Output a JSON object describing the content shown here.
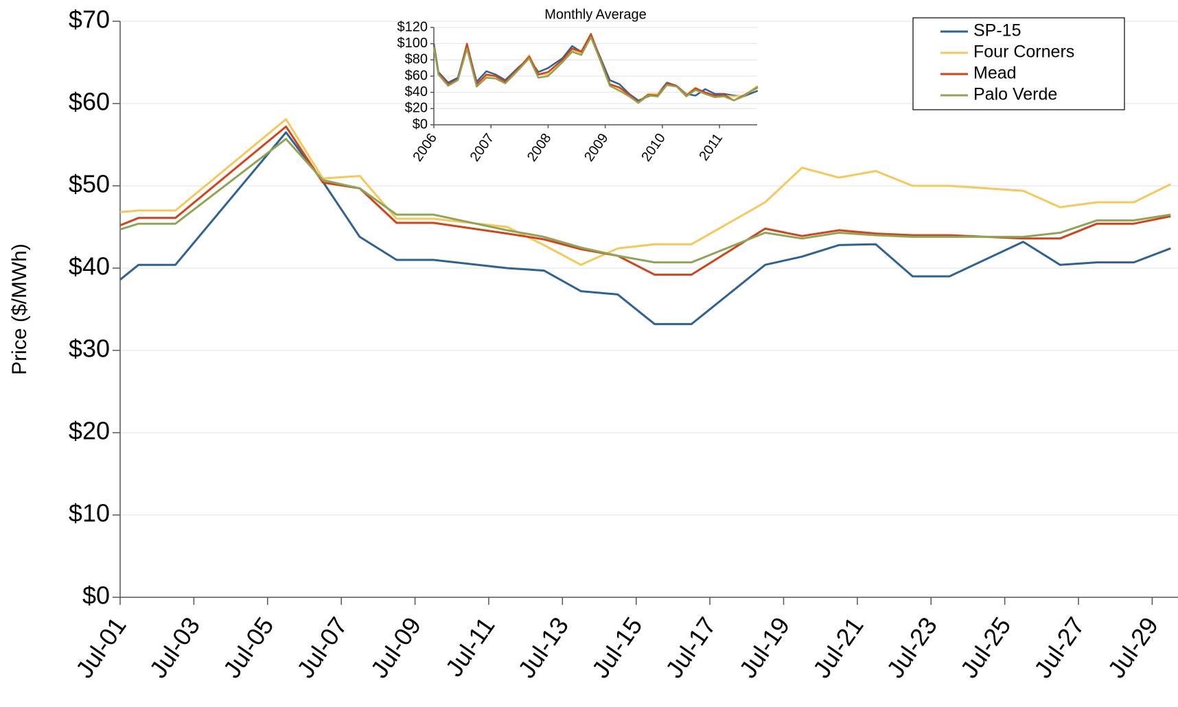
{
  "chart_data": [
    {
      "type": "line",
      "ylabel": "Price ($/MWh)",
      "x": [
        1,
        1.5,
        2.5,
        5.5,
        6.5,
        7.5,
        8.5,
        9.5,
        11.5,
        12.5,
        13.5,
        14.5,
        15.5,
        16.5,
        18.5,
        19.5,
        20.5,
        21.5,
        22.5,
        23.5,
        25.5,
        26.5,
        27.5,
        28.5,
        29.5
      ],
      "xlim": [
        1,
        29.7
      ],
      "xticks": [
        {
          "value": 1,
          "label": "Jul-01"
        },
        {
          "value": 3,
          "label": "Jul-03"
        },
        {
          "value": 5,
          "label": "Jul-05"
        },
        {
          "value": 7,
          "label": "Jul-07"
        },
        {
          "value": 9,
          "label": "Jul-09"
        },
        {
          "value": 11,
          "label": "Jul-11"
        },
        {
          "value": 13,
          "label": "Jul-13"
        },
        {
          "value": 15,
          "label": "Jul-15"
        },
        {
          "value": 17,
          "label": "Jul-17"
        },
        {
          "value": 19,
          "label": "Jul-19"
        },
        {
          "value": 21,
          "label": "Jul-21"
        },
        {
          "value": 23,
          "label": "Jul-23"
        },
        {
          "value": 25,
          "label": "Jul-25"
        },
        {
          "value": 27,
          "label": "Jul-27"
        },
        {
          "value": 29,
          "label": "Jul-29"
        }
      ],
      "ylim": [
        0,
        70
      ],
      "yticks": [
        {
          "value": 0,
          "label": "$0"
        },
        {
          "value": 10,
          "label": "$10"
        },
        {
          "value": 20,
          "label": "$20"
        },
        {
          "value": 30,
          "label": "$30"
        },
        {
          "value": 40,
          "label": "$40"
        },
        {
          "value": 50,
          "label": "$50"
        },
        {
          "value": 60,
          "label": "$60"
        },
        {
          "value": 70,
          "label": "$70"
        }
      ],
      "grid": true,
      "legend": "top-right",
      "series": [
        {
          "name": "SP-15",
          "color": "#2e6294",
          "values": [
            38.6,
            40.4,
            40.4,
            56.5,
            50.5,
            43.8,
            41.0,
            41.0,
            40.0,
            39.7,
            37.2,
            36.8,
            33.2,
            33.2,
            40.4,
            41.4,
            42.8,
            42.9,
            39.0,
            39.0,
            43.2,
            40.4,
            40.7,
            40.7,
            42.4
          ]
        },
        {
          "name": "Four Corners",
          "color": "#f6c85a",
          "values": [
            46.8,
            47.0,
            47.0,
            58.1,
            50.9,
            51.2,
            46.0,
            46.0,
            45.0,
            42.8,
            40.4,
            42.4,
            42.9,
            42.9,
            48.0,
            52.2,
            51.0,
            51.8,
            50.0,
            50.0,
            49.4,
            47.4,
            48.0,
            48.0,
            50.2
          ]
        },
        {
          "name": "Mead",
          "color": "#d2421b",
          "values": [
            45.2,
            46.1,
            46.1,
            57.2,
            50.4,
            49.7,
            45.5,
            45.5,
            44.2,
            43.5,
            42.3,
            41.5,
            39.2,
            39.2,
            44.8,
            43.9,
            44.6,
            44.2,
            44.0,
            44.0,
            43.6,
            43.6,
            45.4,
            45.4,
            46.3
          ]
        },
        {
          "name": "Palo Verde",
          "color": "#8ea555",
          "values": [
            44.7,
            45.4,
            45.4,
            55.7,
            50.7,
            49.7,
            46.5,
            46.5,
            44.6,
            43.8,
            42.5,
            41.5,
            40.7,
            40.7,
            44.3,
            43.6,
            44.3,
            44.0,
            43.8,
            43.8,
            43.8,
            44.3,
            45.8,
            45.8,
            46.5
          ]
        }
      ]
    },
    {
      "type": "line",
      "title": "Monthly Average",
      "x": [
        2006,
        2006.08,
        2006.25,
        2006.42,
        2006.58,
        2006.75,
        2006.92,
        2007.08,
        2007.25,
        2007.5,
        2007.67,
        2007.83,
        2008,
        2008.25,
        2008.42,
        2008.58,
        2008.75,
        2008.92,
        2009.08,
        2009.25,
        2009.42,
        2009.58,
        2009.75,
        2009.92,
        2010.08,
        2010.25,
        2010.42,
        2010.58,
        2010.75,
        2010.92,
        2011.08,
        2011.25,
        2011.42,
        2011.67
      ],
      "xlim": [
        2006,
        2011.66
      ],
      "xticks": [
        2006,
        2007,
        2008,
        2009,
        2010,
        2011
      ],
      "ylim": [
        0,
        120
      ],
      "yticks": [
        {
          "value": 0,
          "label": "$0"
        },
        {
          "value": 20,
          "label": "$20"
        },
        {
          "value": 40,
          "label": "$40"
        },
        {
          "value": 60,
          "label": "$60"
        },
        {
          "value": 80,
          "label": "$80"
        },
        {
          "value": 100,
          "label": "$100"
        },
        {
          "value": 120,
          "label": "$120"
        }
      ],
      "grid": true,
      "series": [
        {
          "color": "#2e6294",
          "values": [
            100,
            65,
            52,
            58,
            98,
            53,
            66,
            62,
            55,
            72,
            82,
            65,
            70,
            82,
            97,
            90,
            110,
            82,
            55,
            50,
            38,
            30,
            35,
            38,
            52,
            48,
            38,
            36,
            44,
            38,
            38,
            36,
            35,
            42
          ]
        },
        {
          "color": "#f6c85a",
          "values": [
            95,
            63,
            50,
            55,
            96,
            50,
            60,
            60,
            52,
            70,
            86,
            62,
            62,
            78,
            92,
            88,
            108,
            80,
            50,
            45,
            36,
            28,
            38,
            38,
            50,
            48,
            37,
            46,
            38,
            35,
            36,
            35,
            36,
            48
          ]
        },
        {
          "color": "#d2421b",
          "values": [
            98,
            64,
            50,
            56,
            100,
            50,
            62,
            60,
            53,
            71,
            84,
            62,
            65,
            80,
            94,
            90,
            112,
            80,
            50,
            46,
            37,
            28,
            37,
            36,
            51,
            48,
            36,
            45,
            40,
            36,
            37,
            30,
            36,
            46
          ]
        },
        {
          "color": "#8ea555",
          "values": [
            96,
            62,
            48,
            55,
            94,
            47,
            58,
            57,
            51,
            69,
            82,
            58,
            60,
            77,
            90,
            86,
            108,
            78,
            48,
            42,
            35,
            27,
            36,
            35,
            49,
            47,
            35,
            43,
            38,
            34,
            35,
            30,
            35,
            47
          ]
        }
      ]
    }
  ]
}
